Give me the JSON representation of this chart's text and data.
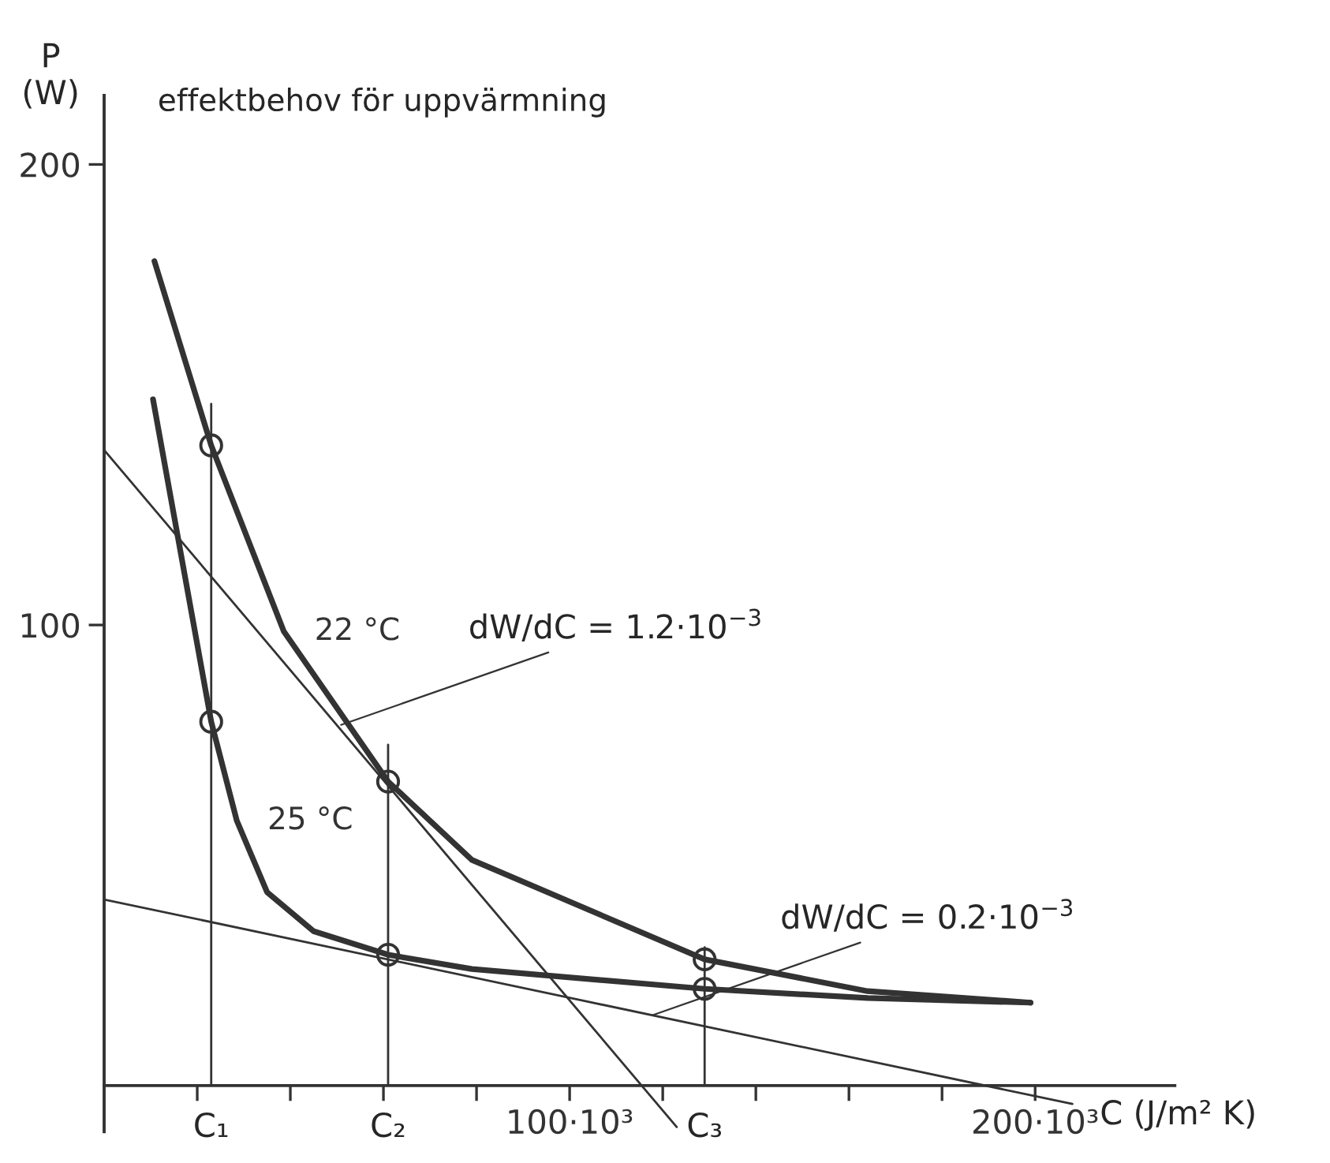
{
  "chart_data": {
    "type": "line",
    "title": "effektbehov för uppvärmning",
    "xlabel": "C (J/m² K)",
    "ylabel": "P\n(W)",
    "xlim": [
      0,
      230000
    ],
    "ylim": [
      -10,
      215
    ],
    "xticks": [
      {
        "value": 20000,
        "label": null
      },
      {
        "value": 40000,
        "label": null
      },
      {
        "value": 60000,
        "label": null
      },
      {
        "value": 80000,
        "label": null
      },
      {
        "value": 100000,
        "label": "100·10³"
      },
      {
        "value": 120000,
        "label": null
      },
      {
        "value": 140000,
        "label": null
      },
      {
        "value": 160000,
        "label": null
      },
      {
        "value": 180000,
        "label": null
      },
      {
        "value": 200000,
        "label": "200·10³"
      }
    ],
    "yticks": [
      100,
      200
    ],
    "grid": false,
    "legend": false,
    "series": [
      {
        "name": "22 °C",
        "color": "#333333",
        "x": [
          10800,
          23000,
          38600,
          61000,
          79000,
          129000,
          164000,
          199000
        ],
        "values": [
          179,
          139,
          98.6,
          66,
          49,
          27.4,
          20.5,
          18
        ]
      },
      {
        "name": "25 °C",
        "color": "#333333",
        "x": [
          10500,
          23000,
          28500,
          35000,
          45000,
          61000,
          79000,
          129000,
          164000,
          199000
        ],
        "values": [
          149,
          79,
          57.5,
          42,
          33.5,
          28.4,
          25.3,
          21,
          19,
          18
        ]
      },
      {
        "color": "#333333",
        "x": [
          0,
          123000
        ],
        "values": [
          138,
          -9
        ]
      },
      {
        "color": "#333333",
        "x": [
          0,
          208000
        ],
        "values": [
          40.4,
          -4
        ]
      },
      {
        "color": "#333333",
        "x": [
          23000,
          23000
        ],
        "values": [
          0,
          148
        ]
      },
      {
        "color": "#333333",
        "x": [
          61000,
          61000
        ],
        "values": [
          0,
          74
        ]
      },
      {
        "color": "#333333",
        "x": [
          129000,
          129000
        ],
        "values": [
          0,
          30
        ]
      },
      {
        "type": "scatter",
        "marker": "circle",
        "color": "#333333",
        "x": [
          23000,
          23000,
          61000,
          61000,
          129000,
          129000
        ],
        "values": [
          139,
          79,
          66,
          28.4,
          27.4,
          21
        ]
      }
    ],
    "annotations": [
      {
        "text": "C₁",
        "x": 23000,
        "y": 0
      },
      {
        "text": "C₂",
        "x": 61000,
        "y": 0
      },
      {
        "text": "C₃",
        "x": 129000,
        "y": 0
      },
      {
        "text": "dW/dC = 1.2·10$^{−3}$",
        "x": 50000,
        "y": 78
      },
      {
        "text": "dW/dC = 0.2·10$^{−3}$",
        "x": 117000,
        "y": 15
      }
    ]
  }
}
